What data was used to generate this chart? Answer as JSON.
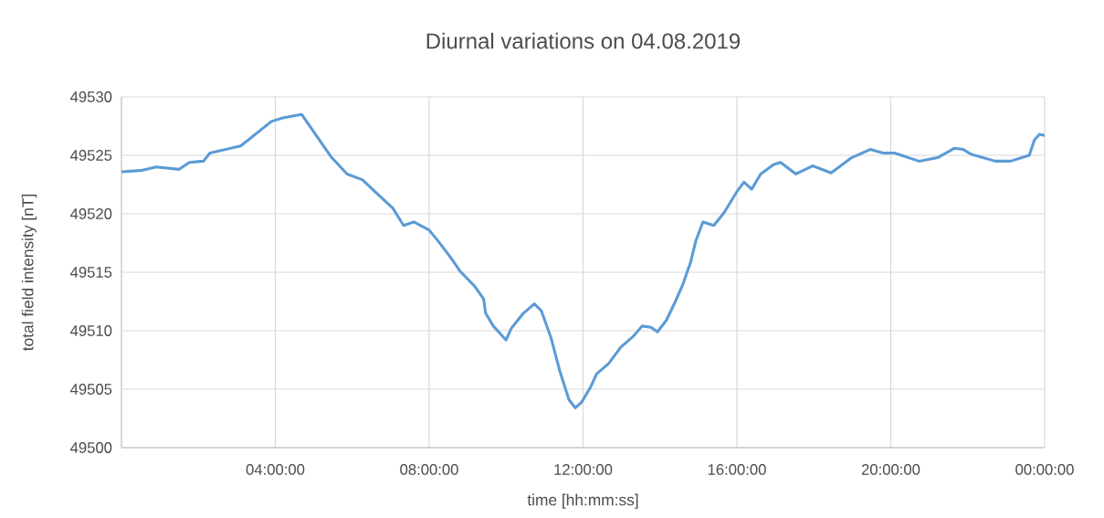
{
  "chart_data": {
    "type": "line",
    "title": "Diurnal variations on 04.08.2019",
    "xlabel": "time [hh:mm:ss]",
    "ylabel": "total field intensity [nT]",
    "x": [
      "2019-08-04T00:00",
      "2019-08-04T00:30",
      "2019-08-04T00:54",
      "2019-08-04T01:30",
      "2019-08-04T01:46",
      "2019-08-04T02:08",
      "2019-08-04T02:18",
      "2019-08-04T03:06",
      "2019-08-04T03:54",
      "2019-08-04T04:12",
      "2019-08-04T04:41",
      "2019-08-04T05:00",
      "2019-08-04T05:28",
      "2019-08-04T05:52",
      "2019-08-04T06:16",
      "2019-08-04T06:39",
      "2019-08-04T07:03",
      "2019-08-04T07:20",
      "2019-08-04T07:36",
      "2019-08-04T08:00",
      "2019-08-04T08:12",
      "2019-08-04T08:33",
      "2019-08-04T08:48",
      "2019-08-04T09:11",
      "2019-08-04T09:25",
      "2019-08-04T09:28",
      "2019-08-04T09:40",
      "2019-08-04T10:00",
      "2019-08-04T10:08",
      "2019-08-04T10:27",
      "2019-08-04T10:44",
      "2019-08-04T10:55",
      "2019-08-04T11:10",
      "2019-08-04T11:24",
      "2019-08-04T11:38",
      "2019-08-04T11:48",
      "2019-08-04T11:58",
      "2019-08-04T12:12",
      "2019-08-04T12:21",
      "2019-08-04T12:40",
      "2019-08-04T12:59",
      "2019-08-04T13:18",
      "2019-08-04T13:32",
      "2019-08-04T13:46",
      "2019-08-04T13:56",
      "2019-08-04T14:10",
      "2019-08-04T14:24",
      "2019-08-04T14:36",
      "2019-08-04T14:48",
      "2019-08-04T14:56",
      "2019-08-04T15:07",
      "2019-08-04T15:24",
      "2019-08-04T15:40",
      "2019-08-04T16:00",
      "2019-08-04T16:11",
      "2019-08-04T16:23",
      "2019-08-04T16:37",
      "2019-08-04T16:57",
      "2019-08-04T17:08",
      "2019-08-04T17:32",
      "2019-08-04T17:58",
      "2019-08-04T18:27",
      "2019-08-04T18:59",
      "2019-08-04T19:28",
      "2019-08-04T19:48",
      "2019-08-04T20:06",
      "2019-08-04T20:44",
      "2019-08-04T21:13",
      "2019-08-04T21:39",
      "2019-08-04T21:53",
      "2019-08-04T22:05",
      "2019-08-04T22:43",
      "2019-08-04T23:07",
      "2019-08-04T23:36",
      "2019-08-04T23:44",
      "2019-08-04T23:52",
      "2019-08-05T00:00"
    ],
    "series": [
      {
        "color": "#5b9bd5",
        "values": [
          49523.6,
          49523.7,
          49524.0,
          49523.8,
          49524.4,
          49524.5,
          49525.2,
          49525.8,
          49527.9,
          49528.2,
          49528.5,
          49527.0,
          49524.8,
          49523.4,
          49522.9,
          49521.7,
          49520.5,
          49519.0,
          49519.3,
          49518.6,
          49517.8,
          49516.3,
          49515.1,
          49513.8,
          49512.7,
          49511.5,
          49510.4,
          49509.2,
          49510.2,
          49511.5,
          49512.3,
          49511.7,
          49509.4,
          49506.5,
          49504.1,
          49503.4,
          49503.9,
          49505.2,
          49506.3,
          49507.2,
          49508.6,
          49509.5,
          49510.4,
          49510.3,
          49509.9,
          49510.9,
          49512.5,
          49514.0,
          49515.9,
          49517.7,
          49519.3,
          49519.0,
          49520.1,
          49521.9,
          49522.7,
          49522.1,
          49523.4,
          49524.2,
          49524.4,
          49523.4,
          49524.1,
          49523.5,
          49524.8,
          49525.5,
          49525.2,
          49525.2,
          49524.5,
          49524.8,
          49525.6,
          49525.5,
          49525.1,
          49524.5,
          49524.5,
          49525.0,
          49526.3,
          49526.8,
          49526.7
        ]
      }
    ],
    "xlim": [
      "2019-08-04T00:00",
      "2019-08-05T00:00"
    ],
    "xticks": [
      {
        "value": "2019-08-04T04:00",
        "label": "04:00:00"
      },
      {
        "value": "2019-08-04T08:00",
        "label": "08:00:00"
      },
      {
        "value": "2019-08-04T12:00",
        "label": "12:00:00"
      },
      {
        "value": "2019-08-04T16:00",
        "label": "16:00:00"
      },
      {
        "value": "2019-08-04T20:00",
        "label": "20:00:00"
      },
      {
        "value": "2019-08-05T00:00",
        "label": "00:00:00"
      }
    ],
    "ylim": [
      49500,
      49530
    ],
    "yticks": [
      49500,
      49505,
      49510,
      49515,
      49520,
      49525,
      49530
    ],
    "grid": true,
    "marker": "none"
  }
}
